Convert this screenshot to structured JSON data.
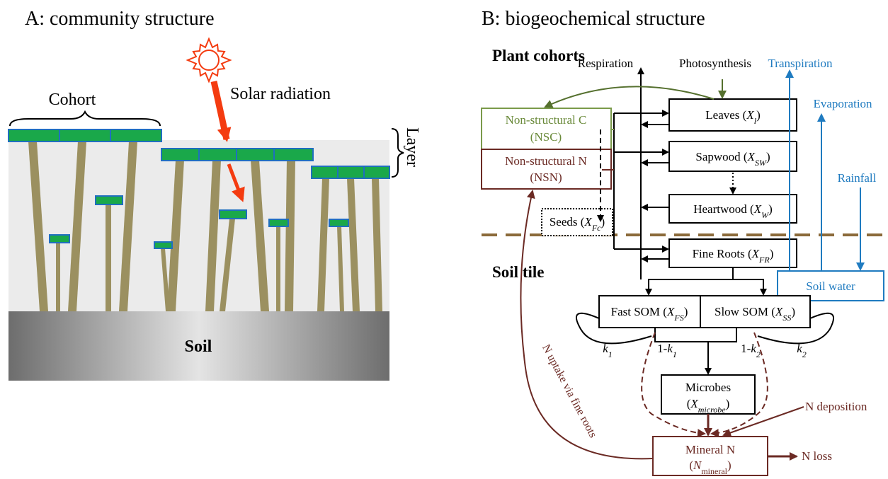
{
  "panel_a": {
    "title": "A: community structure",
    "cohort_label": "Cohort",
    "solar_label": "Solar radiation",
    "layer_label": "Layer",
    "soil_label": "Soil"
  },
  "panel_b": {
    "title": "B: biogeochemical structure",
    "sections": {
      "plant_cohorts": "Plant cohorts",
      "soil_tile": "Soil tile"
    },
    "fluxes": {
      "respiration": "Respiration",
      "photosynthesis": "Photosynthesis",
      "transpiration": "Transpiration",
      "evaporation": "Evaporation",
      "rainfall": "Rainfall",
      "n_deposition": "N deposition",
      "n_loss": "N loss",
      "n_uptake": "N uptake via fine roots"
    },
    "pools": {
      "nsc": {
        "line1": "Non-structural C",
        "line2": "(NSC)"
      },
      "nsn": {
        "line1": "Non-structural N",
        "line2": "(NSN)"
      },
      "leaves": [
        "Leaves (",
        "X",
        "l",
        ")"
      ],
      "sapwood": [
        "Sapwood (",
        "X",
        "SW",
        ")"
      ],
      "heartwood": [
        "Heartwood (",
        "X",
        "W",
        ")"
      ],
      "fine_roots": [
        "Fine Roots (",
        "X",
        "FR",
        ")"
      ],
      "seeds": [
        "Seeds (",
        "X",
        "Fc",
        ")"
      ],
      "fast_som": [
        "Fast SOM (",
        "X",
        "FS",
        ")"
      ],
      "slow_som": [
        "Slow SOM (",
        "X",
        "SS",
        ")"
      ],
      "microbes": {
        "line1": "Microbes",
        "line2": [
          "(",
          "X",
          "microbe",
          ")"
        ]
      },
      "mineral_n": {
        "line1": "Mineral N",
        "line2": [
          "(",
          "N",
          "mineral",
          ")"
        ]
      },
      "soil_water": "Soil water"
    },
    "rates": {
      "k1": [
        "",
        "k",
        "1"
      ],
      "one_minus_k1": [
        "1-",
        "k",
        "1"
      ],
      "one_minus_k2": [
        "1-",
        "k",
        "2"
      ],
      "k2": [
        "",
        "k",
        "2"
      ]
    }
  }
}
